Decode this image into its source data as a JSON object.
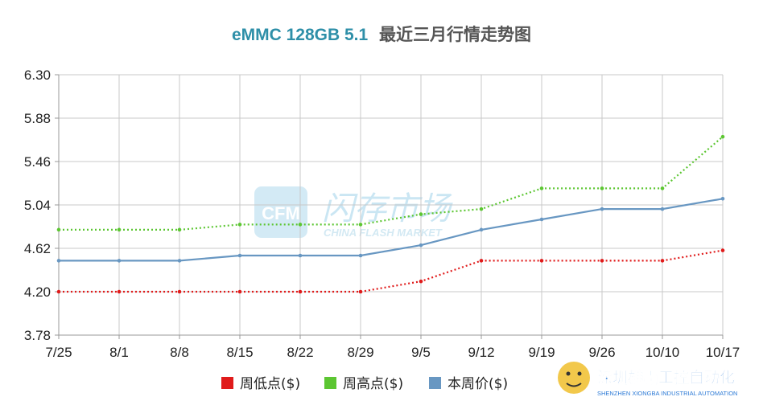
{
  "chart_data": {
    "type": "line",
    "title_part1": "eMMC 128GB 5.1",
    "title_part2": "最近三月行情走势图",
    "categories": [
      "7/25",
      "8/1",
      "8/8",
      "8/15",
      "8/22",
      "8/29",
      "9/5",
      "9/12",
      "9/19",
      "9/26",
      "10/10",
      "10/17"
    ],
    "yticks": [
      "3.78",
      "4.20",
      "4.62",
      "5.04",
      "5.46",
      "5.88",
      "6.30"
    ],
    "ylim": [
      3.78,
      6.3
    ],
    "grid": true,
    "legend_position": "bottom-center",
    "series": [
      {
        "name": "周低点($)",
        "color": "#e01b1b",
        "style": "dotted",
        "values": [
          4.2,
          4.2,
          4.2,
          4.2,
          4.2,
          4.2,
          4.3,
          4.5,
          4.5,
          4.5,
          4.5,
          4.6
        ]
      },
      {
        "name": "周高点($)",
        "color": "#5cc632",
        "style": "dotted",
        "values": [
          4.8,
          4.8,
          4.8,
          4.85,
          4.85,
          4.85,
          4.95,
          5.0,
          5.2,
          5.2,
          5.2,
          5.7
        ]
      },
      {
        "name": "本周价($)",
        "color": "#6897c2",
        "style": "solid",
        "values": [
          4.5,
          4.5,
          4.5,
          4.55,
          4.55,
          4.55,
          4.65,
          4.8,
          4.9,
          5.0,
          5.0,
          5.1
        ]
      }
    ],
    "watermark": {
      "cn": "闪存市场",
      "en": "CHINA FLASH MARKET",
      "logo": "CFM"
    },
    "brand": {
      "cn": "深圳雄霸工控自动化",
      "en": "SHENZHEN XIONGBA INDUSTRIAL AUTOMATION"
    }
  }
}
